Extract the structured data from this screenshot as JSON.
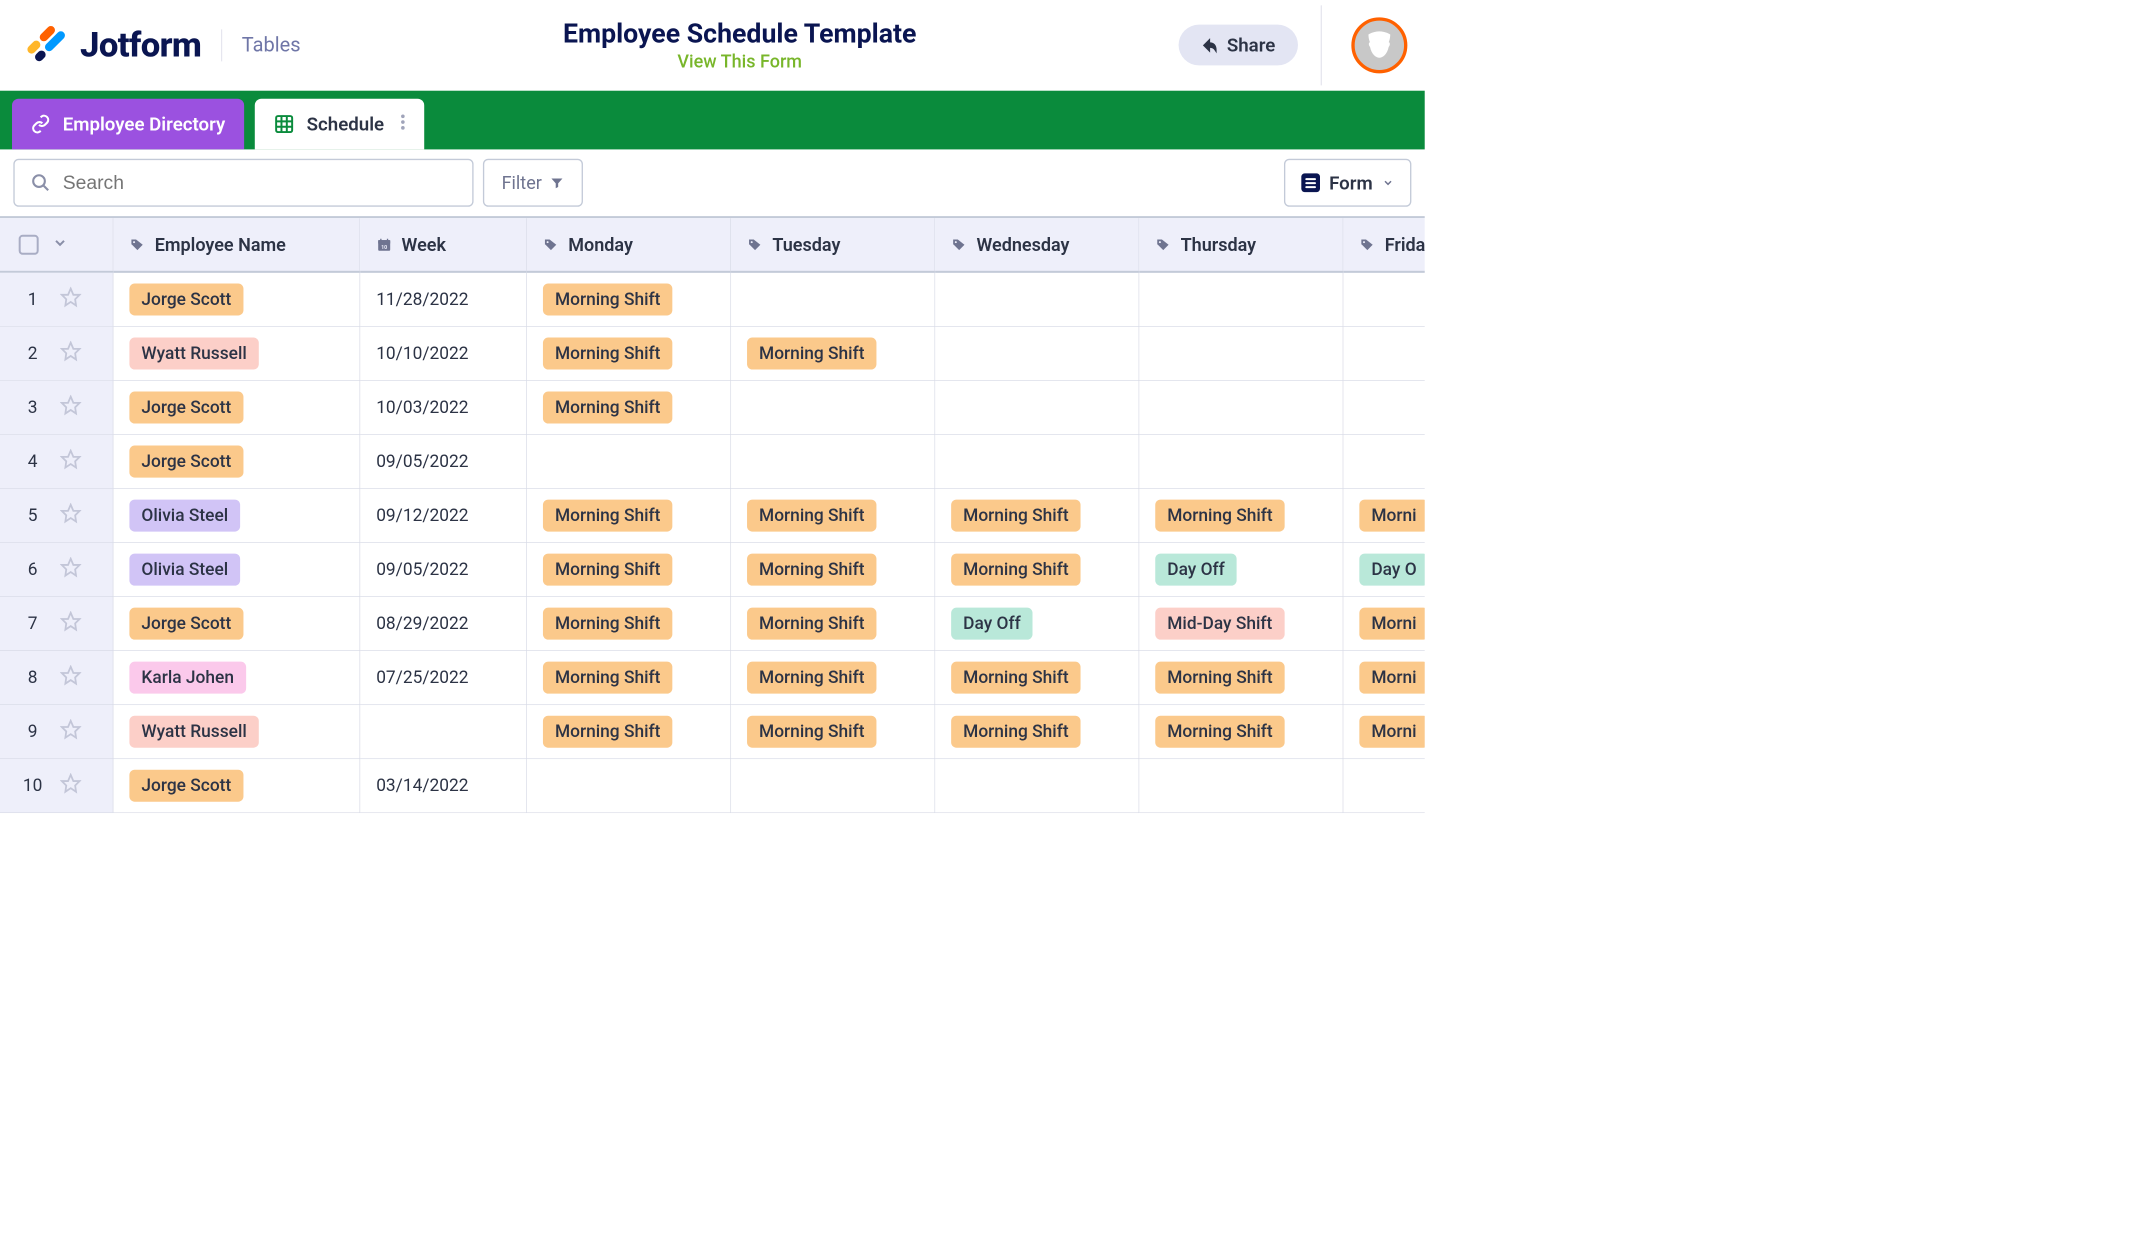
{
  "header": {
    "brand": "Jotform",
    "section": "Tables",
    "title": "Employee Schedule Template",
    "subtitle_link": "View This Form",
    "share_label": "Share"
  },
  "colors": {
    "logo_leaf_left": "#0a1551",
    "logo_leaf_right": "#ff6100",
    "logo_leaf_right2": "#ffb629",
    "logo_leaf_blue": "#09f",
    "tabs_bar_bg": "#0a8b3c",
    "tab_purple": "#9b51e0",
    "subtitle_green": "#78b62a",
    "avatar_ring": "#ff6100"
  },
  "tabs": {
    "directory": "Employee Directory",
    "schedule": "Schedule"
  },
  "toolbar": {
    "search_placeholder": "Search",
    "filter_label": "Filter",
    "form_label": "Form"
  },
  "columns": [
    {
      "label": "Employee Name",
      "icon": "tag"
    },
    {
      "label": "Week",
      "icon": "calendar"
    },
    {
      "label": "Monday",
      "icon": "tag"
    },
    {
      "label": "Tuesday",
      "icon": "tag"
    },
    {
      "label": "Wednesday",
      "icon": "tag"
    },
    {
      "label": "Thursday",
      "icon": "tag"
    },
    {
      "label": "Frida",
      "icon": "tag"
    }
  ],
  "tag_colors": {
    "jorge": "#fbc98b",
    "wyatt": "#fccfc8",
    "olivia": "#d1c4f6",
    "karla": "#fbc9eb",
    "morning": "#fbc98b",
    "dayoff": "#b9e8d9",
    "midday": "#fccfc8"
  },
  "rows": [
    {
      "n": "1",
      "name": "Jorge Scott",
      "name_c": "jorge",
      "week": "11/28/2022",
      "mon": "Morning Shift",
      "mon_c": "morning"
    },
    {
      "n": "2",
      "name": "Wyatt Russell",
      "name_c": "wyatt",
      "week": "10/10/2022",
      "mon": "Morning Shift",
      "mon_c": "morning",
      "tue": "Morning Shift",
      "tue_c": "morning"
    },
    {
      "n": "3",
      "name": "Jorge Scott",
      "name_c": "jorge",
      "week": "10/03/2022",
      "mon": "Morning Shift",
      "mon_c": "morning"
    },
    {
      "n": "4",
      "name": "Jorge Scott",
      "name_c": "jorge",
      "week": "09/05/2022"
    },
    {
      "n": "5",
      "name": "Olivia Steel",
      "name_c": "olivia",
      "week": "09/12/2022",
      "mon": "Morning Shift",
      "mon_c": "morning",
      "tue": "Morning Shift",
      "tue_c": "morning",
      "wed": "Morning Shift",
      "wed_c": "morning",
      "thu": "Morning Shift",
      "thu_c": "morning",
      "fri": "Morni",
      "fri_c": "morning"
    },
    {
      "n": "6",
      "name": "Olivia Steel",
      "name_c": "olivia",
      "week": "09/05/2022",
      "mon": "Morning Shift",
      "mon_c": "morning",
      "tue": "Morning Shift",
      "tue_c": "morning",
      "wed": "Morning Shift",
      "wed_c": "morning",
      "thu": "Day Off",
      "thu_c": "dayoff",
      "fri": "Day O",
      "fri_c": "dayoff"
    },
    {
      "n": "7",
      "name": "Jorge Scott",
      "name_c": "jorge",
      "week": "08/29/2022",
      "mon": "Morning Shift",
      "mon_c": "morning",
      "tue": "Morning Shift",
      "tue_c": "morning",
      "wed": "Day Off",
      "wed_c": "dayoff",
      "thu": "Mid-Day Shift",
      "thu_c": "midday",
      "fri": "Morni",
      "fri_c": "morning"
    },
    {
      "n": "8",
      "name": "Karla Johen",
      "name_c": "karla",
      "week": "07/25/2022",
      "mon": "Morning Shift",
      "mon_c": "morning",
      "tue": "Morning Shift",
      "tue_c": "morning",
      "wed": "Morning Shift",
      "wed_c": "morning",
      "thu": "Morning Shift",
      "thu_c": "morning",
      "fri": "Morni",
      "fri_c": "morning"
    },
    {
      "n": "9",
      "name": "Wyatt Russell",
      "name_c": "wyatt",
      "week": "",
      "mon": "Morning Shift",
      "mon_c": "morning",
      "tue": "Morning Shift",
      "tue_c": "morning",
      "wed": "Morning Shift",
      "wed_c": "morning",
      "thu": "Morning Shift",
      "thu_c": "morning",
      "fri": "Morni",
      "fri_c": "morning"
    },
    {
      "n": "10",
      "name": "Jorge Scott",
      "name_c": "jorge",
      "week": "03/14/2022"
    }
  ]
}
